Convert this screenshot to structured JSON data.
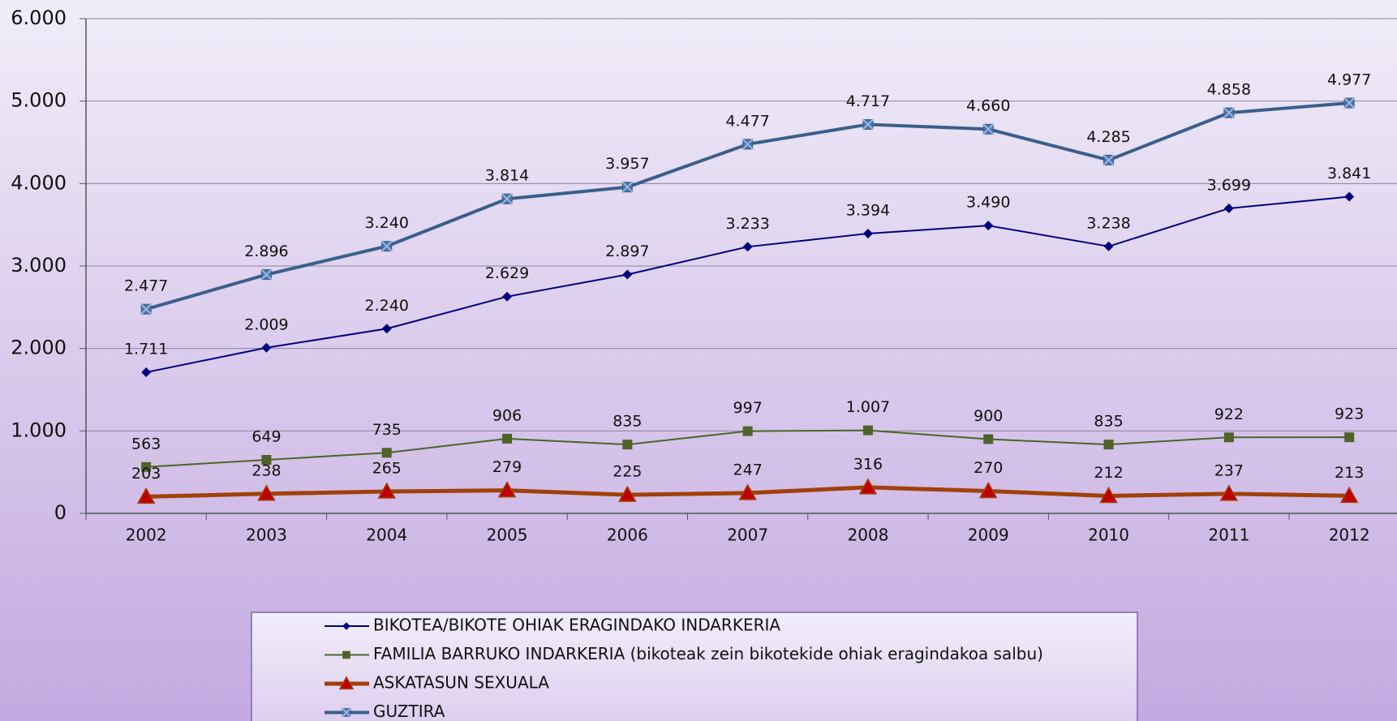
{
  "chart_data": {
    "type": "line",
    "categories": [
      "2002",
      "2003",
      "2004",
      "2005",
      "2006",
      "2007",
      "2008",
      "2009",
      "2010",
      "2011",
      "2012"
    ],
    "series": [
      {
        "name": "BIKOTEA/BIKOTE OHIAK ERAGINDAKO INDARKERIA",
        "color": "#000080",
        "marker": "diamond",
        "marker_color": "#000080",
        "line_width": 2,
        "values": [
          1711,
          2009,
          2240,
          2629,
          2897,
          3233,
          3394,
          3490,
          3238,
          3699,
          3841
        ],
        "value_labels": [
          "1.711",
          "2.009",
          "2.240",
          "2.629",
          "2.897",
          "3.233",
          "3.394",
          "3.490",
          "3.238",
          "3.699",
          "3.841"
        ]
      },
      {
        "name": "FAMILIA BARRUKO INDARKERIA (bikoteak zein bikotekide ohiak eragindakoa salbu)",
        "color": "#4f6228",
        "marker": "square",
        "marker_color": "#4f6228",
        "line_width": 2,
        "values": [
          563,
          649,
          735,
          906,
          835,
          997,
          1007,
          900,
          835,
          922,
          923
        ],
        "value_labels": [
          "563",
          "649",
          "735",
          "906",
          "835",
          "997",
          "1.007",
          "900",
          "835",
          "922",
          "923"
        ]
      },
      {
        "name": "ASKATASUN SEXUALA",
        "color": "#a0400a",
        "marker": "triangle",
        "marker_color": "#c00000",
        "line_width": 5,
        "values": [
          203,
          238,
          265,
          279,
          225,
          247,
          316,
          270,
          212,
          237,
          213
        ],
        "value_labels": [
          "203",
          "238",
          "265",
          "279",
          "225",
          "247",
          "316",
          "270",
          "212",
          "237",
          "213"
        ]
      },
      {
        "name": "GUZTIRA",
        "color": "#3b5e8c",
        "marker": "xsquare",
        "marker_color": "#4a74a8",
        "line_width": 4,
        "values": [
          2477,
          2896,
          3240,
          3814,
          3957,
          4477,
          4717,
          4660,
          4285,
          4858,
          4977
        ],
        "value_labels": [
          "2.477",
          "2.896",
          "3.240",
          "3.814",
          "3.957",
          "4.477",
          "4.717",
          "4.660",
          "4.285",
          "4.858",
          "4.977"
        ]
      }
    ],
    "ylim": [
      0,
      6000
    ],
    "yticks": [
      0,
      {
        "value": 1000,
        "label": "1.000"
      },
      {
        "value": 2000,
        "label": "2.000"
      },
      {
        "value": 3000,
        "label": "3.000"
      },
      {
        "value": 4000,
        "label": "4.000"
      },
      {
        "value": 5000,
        "label": "5.000"
      },
      {
        "value": 6000,
        "label": "6.000"
      }
    ],
    "grid": true,
    "legend": "bottom"
  }
}
